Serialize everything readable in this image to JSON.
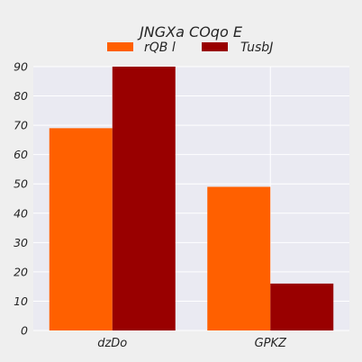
{
  "chart_data": {
    "type": "bar",
    "title": "JNGXa COqo E",
    "xlabel": "",
    "ylabel": "",
    "categories": [
      "dzDo",
      "GPKZ"
    ],
    "series": [
      {
        "name": "rQB l",
        "values": [
          69,
          49
        ],
        "color": "#ff6000"
      },
      {
        "name": "TusbJ",
        "values": [
          90,
          16
        ],
        "color": "#990000"
      }
    ],
    "ylim": [
      0,
      90
    ],
    "yticks": [
      "0",
      "10",
      "20",
      "30",
      "40",
      "50",
      "60",
      "70",
      "80",
      "90"
    ],
    "grid": true,
    "legend_position": "top-center",
    "background_color": "#efefef",
    "plot_background_color": "#eaeaf2",
    "grid_color": "#ffffff"
  }
}
